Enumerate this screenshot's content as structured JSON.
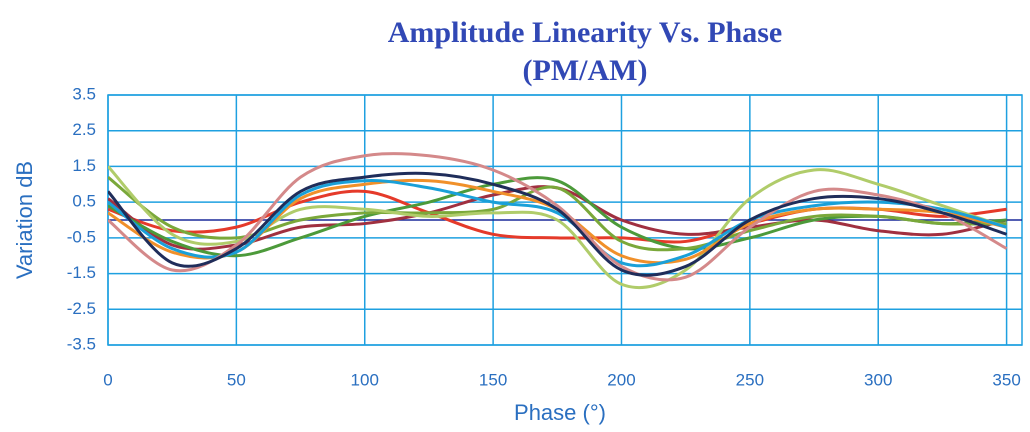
{
  "chart_data": {
    "type": "line",
    "title": "Amplitude Linearity Vs. Phase",
    "subtitle": "(PM/AM)",
    "x_label": "Phase (°)",
    "y_label": "Variation dB",
    "x": [
      0,
      25,
      50,
      75,
      100,
      125,
      150,
      175,
      200,
      225,
      250,
      275,
      300,
      325,
      350
    ],
    "series": [
      {
        "color": "#e53a2a",
        "values": [
          0.3,
          -0.3,
          -0.2,
          0.5,
          0.8,
          0.2,
          -0.4,
          -0.5,
          -0.5,
          -0.6,
          -0.1,
          0.3,
          0.3,
          0.1,
          0.3
        ]
      },
      {
        "color": "#a03040",
        "values": [
          0.6,
          -0.7,
          -0.7,
          -0.2,
          -0.1,
          0.2,
          0.7,
          0.9,
          0.0,
          -0.4,
          -0.2,
          0.0,
          -0.3,
          -0.4,
          0.0
        ]
      },
      {
        "color": "#4c9a3a",
        "values": [
          0.4,
          -0.6,
          -1.0,
          -0.5,
          0.1,
          0.5,
          1.0,
          1.1,
          -0.2,
          -0.8,
          -0.5,
          0.0,
          0.1,
          -0.1,
          0.0
        ]
      },
      {
        "color": "#7aa83a",
        "values": [
          1.2,
          -0.2,
          -0.5,
          0.0,
          0.2,
          0.2,
          0.3,
          0.9,
          -0.6,
          -0.8,
          -0.3,
          0.1,
          0.1,
          -0.1,
          -0.1
        ]
      },
      {
        "color": "#b0cc6a",
        "values": [
          1.5,
          -0.4,
          -0.6,
          0.3,
          0.3,
          0.1,
          0.2,
          0.0,
          -1.8,
          -1.4,
          0.6,
          1.4,
          1.0,
          0.4,
          -0.2
        ]
      },
      {
        "color": "#f0902a",
        "values": [
          0.2,
          -0.9,
          -0.9,
          0.6,
          1.0,
          1.1,
          0.8,
          0.3,
          -1.0,
          -1.1,
          -0.1,
          0.3,
          0.3,
          0.2,
          -0.2
        ]
      },
      {
        "color": "#1aa0d8",
        "values": [
          0.5,
          -0.8,
          -0.9,
          0.7,
          1.1,
          0.9,
          0.5,
          0.2,
          -1.2,
          -1.0,
          0.0,
          0.4,
          0.5,
          0.3,
          -0.2
        ]
      },
      {
        "color": "#d4898a",
        "values": [
          0.0,
          -1.4,
          -0.7,
          1.2,
          1.8,
          1.8,
          1.4,
          0.4,
          -1.3,
          -1.6,
          -0.2,
          0.8,
          0.7,
          0.2,
          -0.8
        ]
      },
      {
        "color": "#1f2d5a",
        "values": [
          0.8,
          -1.2,
          -0.8,
          0.8,
          1.2,
          1.3,
          1.0,
          0.3,
          -1.4,
          -1.3,
          0.0,
          0.6,
          0.6,
          0.2,
          -0.4
        ]
      }
    ],
    "xlim": [
      0,
      356
    ],
    "xticks": [
      0,
      50,
      100,
      150,
      200,
      250,
      300,
      350
    ],
    "ylim": [
      -3.5,
      3.5
    ],
    "yticks": [
      3.5,
      2.5,
      1.5,
      0.5,
      -0.5,
      -1.5,
      -2.5,
      -3.5
    ],
    "grid": true
  }
}
